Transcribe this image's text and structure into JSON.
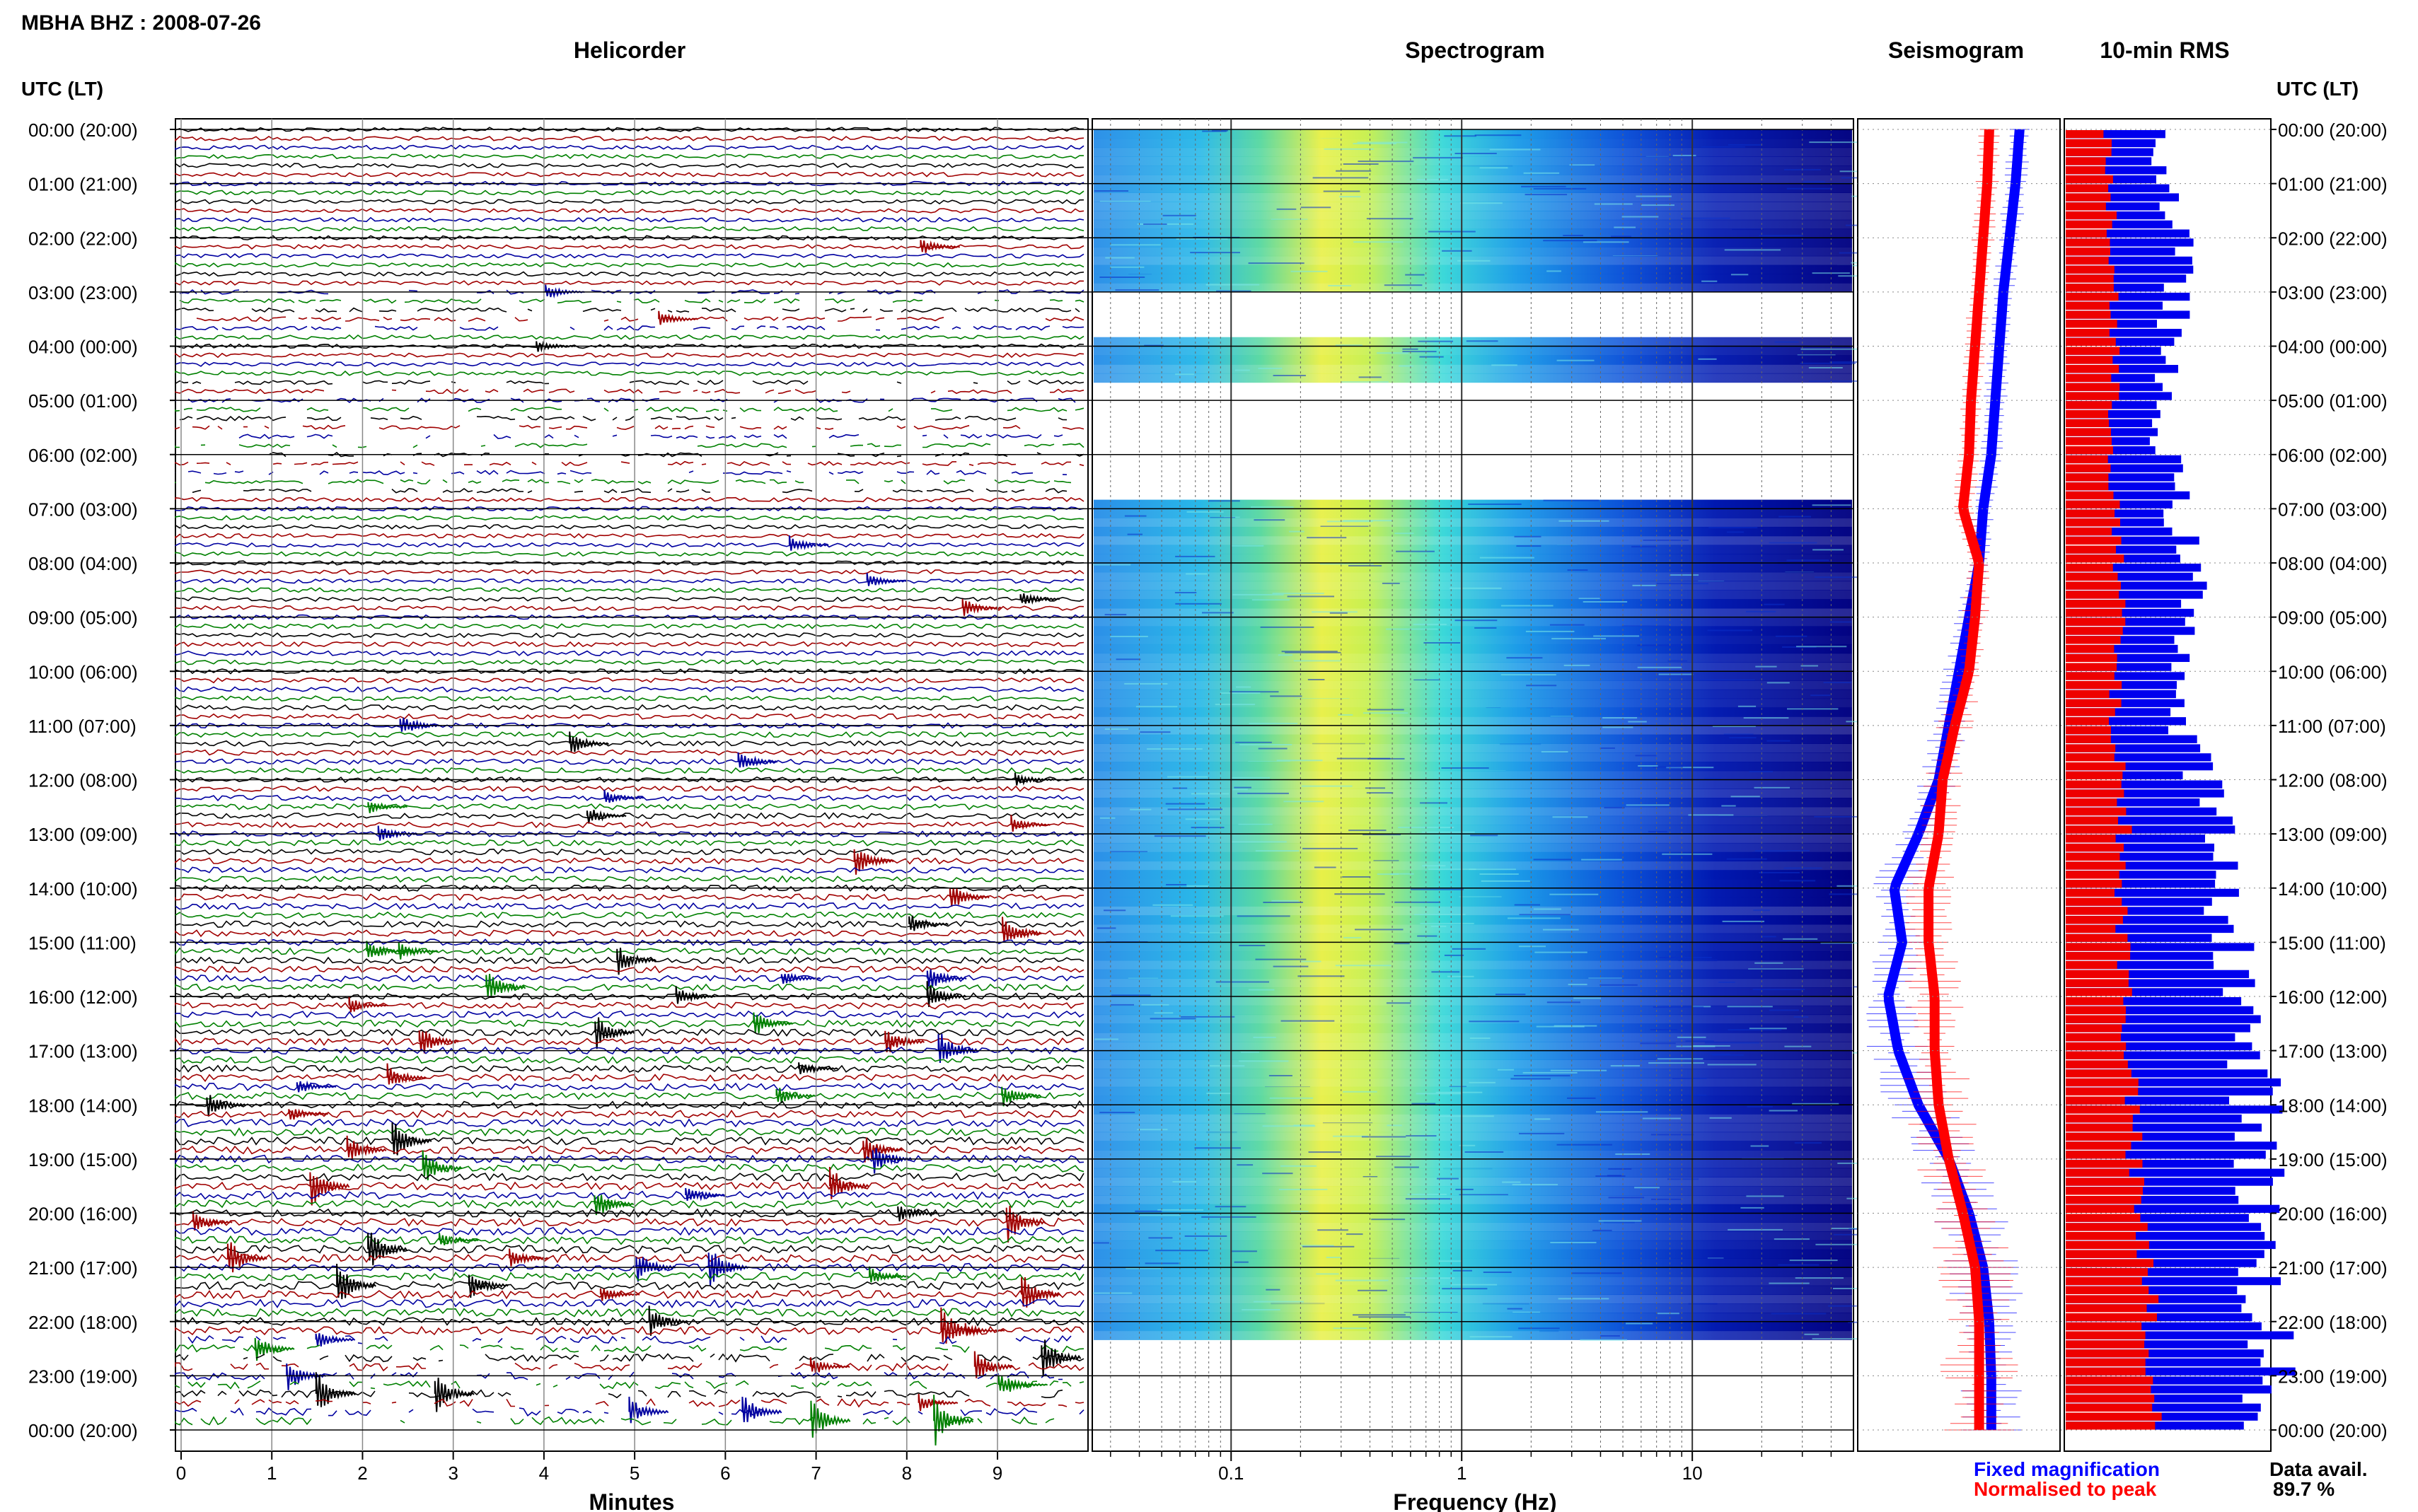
{
  "chart_data": {
    "type": "heatmap",
    "station_title": "MBHA BHZ : 2008-07-26",
    "panels": {
      "helicorder": {
        "title": "Helicorder",
        "xlabel": "Minutes",
        "x_ticks": [
          "0",
          "1",
          "2",
          "3",
          "4",
          "5",
          "6",
          "7",
          "8",
          "9"
        ],
        "xlim": [
          0,
          10
        ],
        "trace_colors": [
          "#000000",
          "#a00000",
          "#0000a0",
          "#008000"
        ],
        "rows_per_hour": 6
      },
      "spectrogram": {
        "title": "Spectrogram",
        "xlabel": "Frequency (Hz)",
        "x_ticks": [
          "0.1",
          "1",
          "10"
        ],
        "x_scale": "log",
        "xlim": [
          0.025,
          50
        ]
      },
      "seismogram": {
        "title": "Seismogram",
        "series": [
          {
            "name": "Fixed magnification",
            "color": "#0000ff"
          },
          {
            "name": "Normalised to peak",
            "color": "#ff0000"
          }
        ]
      },
      "rms": {
        "title": "10-min RMS"
      }
    },
    "y_axis": {
      "label": "UTC (LT)",
      "hour_labels": [
        "00:00 (20:00)",
        "01:00 (21:00)",
        "02:00 (22:00)",
        "03:00 (23:00)",
        "04:00 (00:00)",
        "05:00 (01:00)",
        "06:00 (02:00)",
        "07:00 (03:00)",
        "08:00 (04:00)",
        "09:00 (05:00)",
        "10:00 (06:00)",
        "11:00 (07:00)",
        "12:00 (08:00)",
        "13:00 (09:00)",
        "14:00 (10:00)",
        "15:00 (11:00)",
        "16:00 (12:00)",
        "17:00 (13:00)",
        "18:00 (14:00)",
        "19:00 (15:00)",
        "20:00 (16:00)",
        "21:00 (17:00)",
        "22:00 (18:00)",
        "23:00 (19:00)",
        "00:00 (20:00)"
      ]
    },
    "spectrogram_gaps_hours": [
      [
        3.0,
        3.75
      ],
      [
        4.55,
        6.75
      ],
      [
        22.2,
        24.0
      ]
    ],
    "seismogram_blue_x": [
      0.8,
      0.78,
      0.75,
      0.72,
      0.7,
      0.68,
      0.66,
      0.62,
      0.6,
      0.55,
      0.5,
      0.45,
      0.4,
      0.3,
      0.18,
      0.22,
      0.15,
      0.2,
      0.3,
      0.45,
      0.55,
      0.62,
      0.65,
      0.66,
      0.66
    ],
    "seismogram_red_x": [
      0.65,
      0.64,
      0.62,
      0.6,
      0.58,
      0.56,
      0.55,
      0.52,
      0.6,
      0.58,
      0.55,
      0.48,
      0.42,
      0.4,
      0.35,
      0.35,
      0.38,
      0.38,
      0.4,
      0.45,
      0.52,
      0.58,
      0.6,
      0.6,
      0.6
    ],
    "rms_red": [
      0.35,
      0.35,
      0.38,
      0.4,
      0.4,
      0.38,
      0.4,
      0.4,
      0.42,
      0.45,
      0.4,
      0.4,
      0.45,
      0.48,
      0.45,
      0.48,
      0.5,
      0.52,
      0.55,
      0.55,
      0.6,
      0.65,
      0.7,
      0.68,
      0.7
    ],
    "rms_blue": [
      0.45,
      0.5,
      0.55,
      0.55,
      0.5,
      0.45,
      0.5,
      0.55,
      0.6,
      0.65,
      0.55,
      0.55,
      0.7,
      0.75,
      0.75,
      0.85,
      0.85,
      0.9,
      0.95,
      0.95,
      0.95,
      0.95,
      1.0,
      0.98,
      0.98
    ],
    "legend": {
      "fixed": "Fixed magnification",
      "normalised": "Normalised to peak"
    },
    "data_availability": {
      "label": "Data avail.",
      "value": "89.7 %"
    }
  }
}
